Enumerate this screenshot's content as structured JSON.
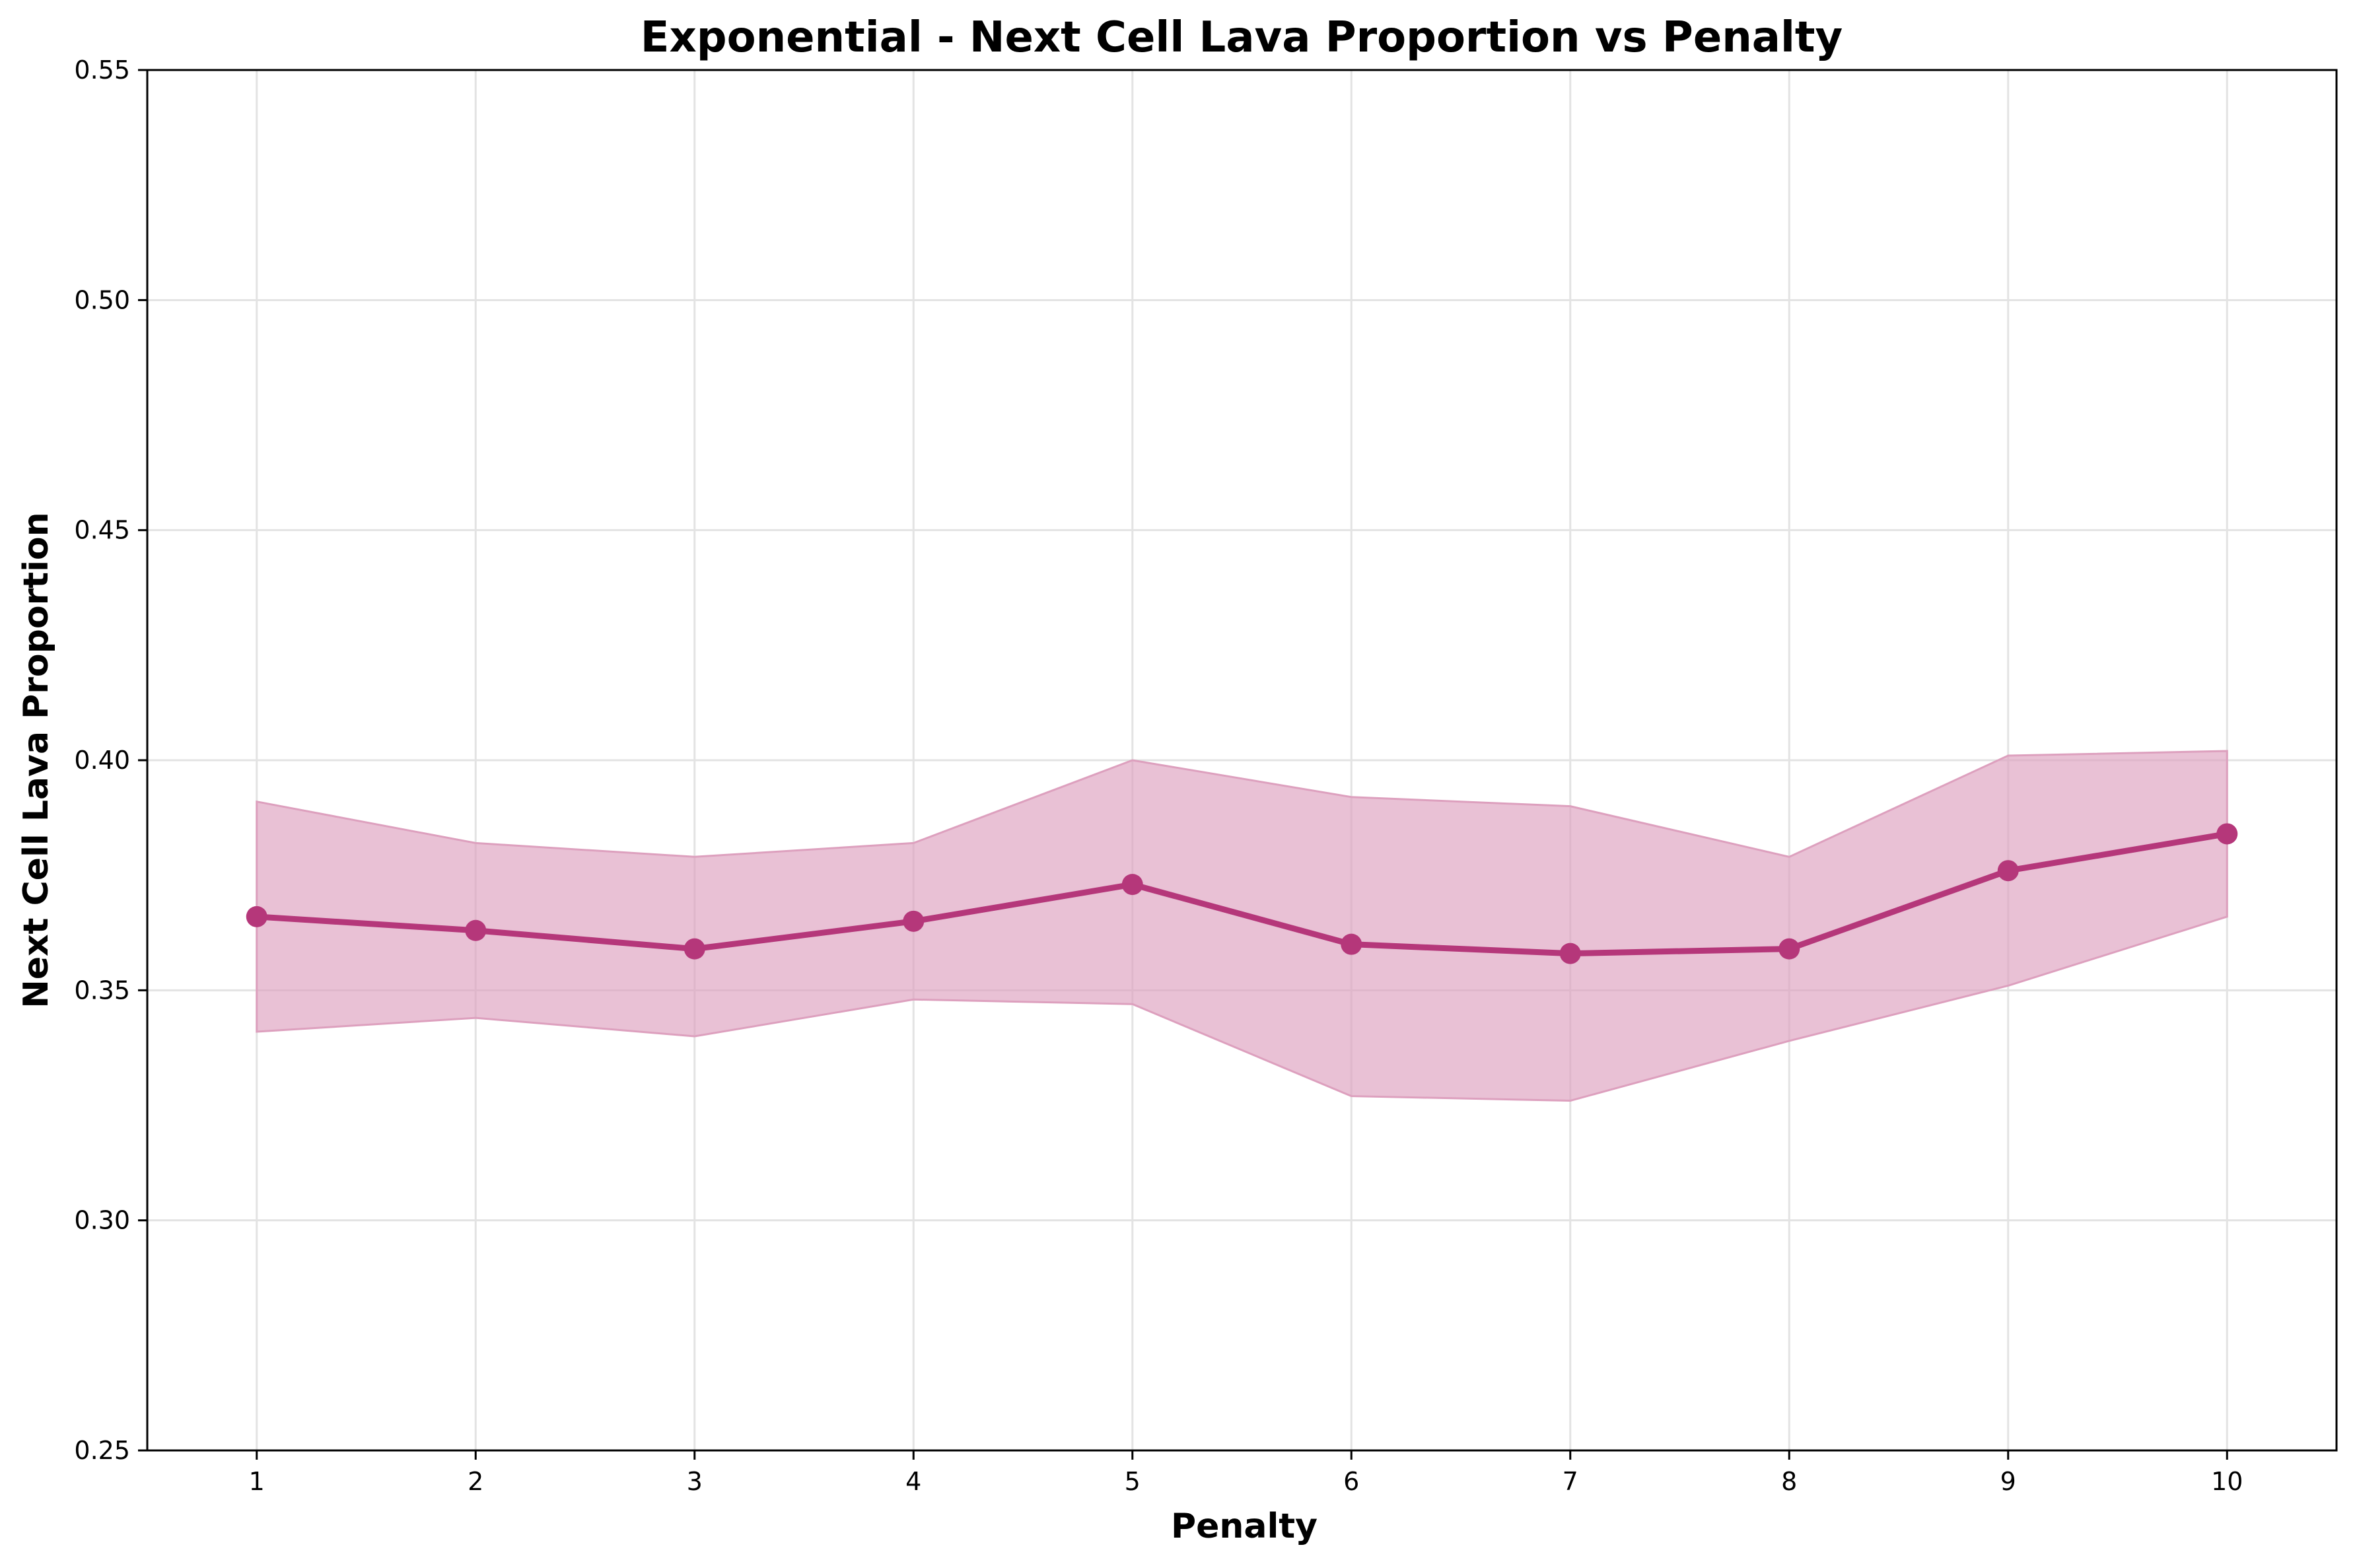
{
  "chart_data": {
    "type": "line",
    "title": "Exponential - Next Cell Lava Proportion vs Penalty",
    "xlabel": "Penalty",
    "ylabel": "Next Cell Lava Proportion",
    "x": [
      1,
      2,
      3,
      4,
      5,
      6,
      7,
      8,
      9,
      10
    ],
    "xlim": [
      0.5,
      10.5
    ],
    "ylim": [
      0.25,
      0.55
    ],
    "xticks": [
      "1",
      "2",
      "3",
      "4",
      "5",
      "6",
      "7",
      "8",
      "9",
      "10"
    ],
    "yticks": [
      "0.25",
      "0.30",
      "0.35",
      "0.40",
      "0.45",
      "0.50",
      "0.55"
    ],
    "grid": true,
    "series": [
      {
        "values": [
          0.366,
          0.363,
          0.359,
          0.365,
          0.373,
          0.36,
          0.358,
          0.359,
          0.376,
          0.384
        ],
        "upper": [
          0.391,
          0.382,
          0.379,
          0.382,
          0.4,
          0.392,
          0.39,
          0.379,
          0.401,
          0.402
        ],
        "lower": [
          0.341,
          0.344,
          0.34,
          0.348,
          0.347,
          0.327,
          0.326,
          0.339,
          0.351,
          0.366
        ],
        "color": "#b5377a",
        "band_color": "#dda0be"
      }
    ]
  }
}
